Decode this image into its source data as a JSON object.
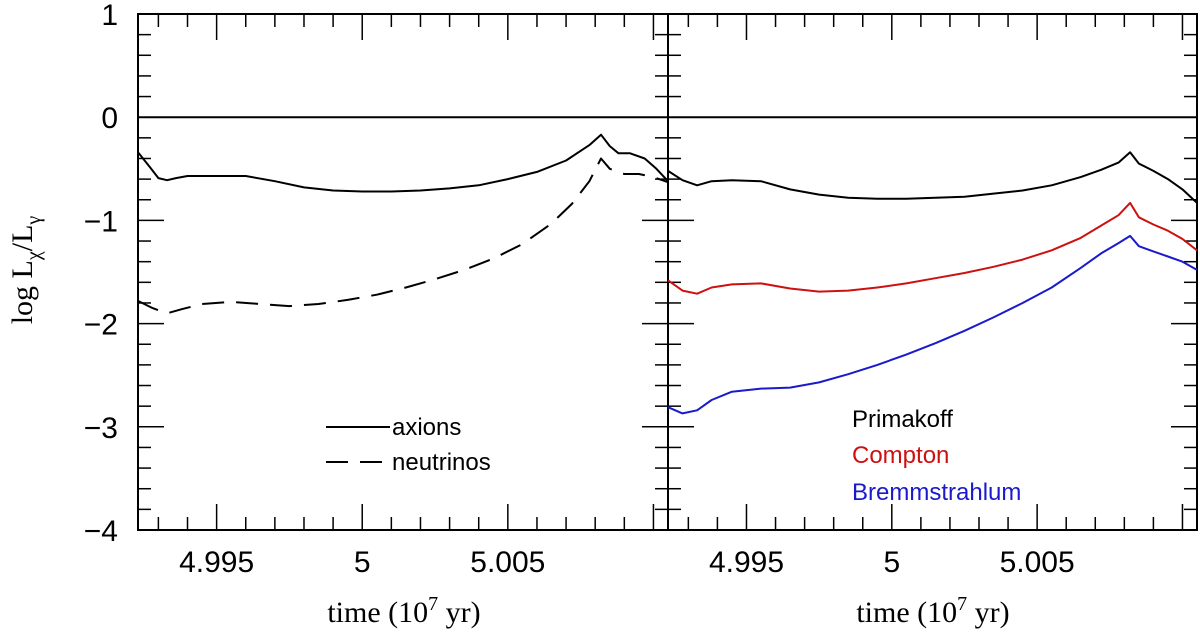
{
  "chart_data": [
    {
      "type": "line",
      "panel": "left",
      "xlabel": "time (10⁷ yr)",
      "ylabel": "log Lₓ/Lᵧ",
      "xlim": [
        4.9923,
        5.0105
      ],
      "ylim": [
        -4,
        1
      ],
      "x_ticks": [
        4.995,
        5,
        5.005
      ],
      "x_tick_labels": [
        "4.995",
        "5",
        "5.005"
      ],
      "y_ticks": [
        1,
        0,
        -1,
        -2,
        -3,
        -4
      ],
      "y_tick_labels": [
        "1",
        "0",
        "−1",
        "−2",
        "−3",
        "−4"
      ],
      "reference_line": 0,
      "legend": [
        "axions",
        "neutrinos"
      ],
      "series": [
        {
          "name": "axions",
          "style": "solid",
          "color": "#000000",
          "x": [
            4.9923,
            4.9927,
            4.993,
            4.9933,
            4.9936,
            4.994,
            4.995,
            4.996,
            4.997,
            4.998,
            4.999,
            5.0,
            5.001,
            5.002,
            5.003,
            5.004,
            5.005,
            5.006,
            5.007,
            5.0078,
            5.0082,
            5.0085,
            5.0088,
            5.0092,
            5.0097,
            5.0101,
            5.0105
          ],
          "y": [
            -0.34,
            -0.48,
            -0.59,
            -0.61,
            -0.59,
            -0.57,
            -0.57,
            -0.57,
            -0.62,
            -0.68,
            -0.71,
            -0.72,
            -0.72,
            -0.71,
            -0.69,
            -0.66,
            -0.6,
            -0.53,
            -0.42,
            -0.27,
            -0.17,
            -0.28,
            -0.35,
            -0.35,
            -0.4,
            -0.5,
            -0.62
          ]
        },
        {
          "name": "neutrinos",
          "style": "dashed",
          "color": "#000000",
          "x": [
            4.9923,
            4.9928,
            4.9933,
            4.9938,
            4.9945,
            4.9955,
            4.9965,
            4.9975,
            4.9985,
            4.9995,
            5.0005,
            5.0015,
            5.0025,
            5.0035,
            5.0045,
            5.0055,
            5.0065,
            5.0072,
            5.0078,
            5.0082,
            5.0085,
            5.009,
            5.0095,
            5.01,
            5.0105
          ],
          "y": [
            -1.78,
            -1.85,
            -1.9,
            -1.86,
            -1.81,
            -1.79,
            -1.81,
            -1.83,
            -1.81,
            -1.77,
            -1.72,
            -1.65,
            -1.57,
            -1.48,
            -1.37,
            -1.23,
            -1.03,
            -0.84,
            -0.62,
            -0.4,
            -0.5,
            -0.55,
            -0.55,
            -0.58,
            -0.63
          ]
        }
      ]
    },
    {
      "type": "line",
      "panel": "right",
      "xlabel": "time (10⁷ yr)",
      "xlim": [
        4.9923,
        5.0105
      ],
      "ylim": [
        -4,
        1
      ],
      "x_ticks": [
        4.995,
        5,
        5.005
      ],
      "x_tick_labels": [
        "4.995",
        "5",
        "5.005"
      ],
      "reference_line": 0,
      "legend": [
        "Primakoff",
        "Compton",
        "Bremmstrahlum"
      ],
      "series": [
        {
          "name": "Primakoff",
          "color": "#000000",
          "x": [
            4.9923,
            4.9928,
            4.9933,
            4.9938,
            4.9945,
            4.9955,
            4.9965,
            4.9975,
            4.9985,
            4.9995,
            5.0005,
            5.0015,
            5.0025,
            5.0035,
            5.0045,
            5.0055,
            5.0065,
            5.0072,
            5.0078,
            5.0082,
            5.0085,
            5.009,
            5.0095,
            5.01,
            5.0105
          ],
          "y": [
            -0.52,
            -0.61,
            -0.66,
            -0.62,
            -0.61,
            -0.62,
            -0.7,
            -0.75,
            -0.78,
            -0.79,
            -0.79,
            -0.78,
            -0.77,
            -0.74,
            -0.71,
            -0.66,
            -0.58,
            -0.51,
            -0.44,
            -0.34,
            -0.45,
            -0.52,
            -0.6,
            -0.7,
            -0.83
          ]
        },
        {
          "name": "Compton",
          "color": "#cc1111",
          "x": [
            4.9923,
            4.9928,
            4.9933,
            4.9938,
            4.9945,
            4.9955,
            4.9965,
            4.9975,
            4.9985,
            4.9995,
            5.0005,
            5.0015,
            5.0025,
            5.0035,
            5.0045,
            5.0055,
            5.0065,
            5.0072,
            5.0078,
            5.0082,
            5.0085,
            5.009,
            5.0095,
            5.01,
            5.0105
          ],
          "y": [
            -1.58,
            -1.68,
            -1.71,
            -1.65,
            -1.62,
            -1.61,
            -1.66,
            -1.69,
            -1.68,
            -1.65,
            -1.61,
            -1.56,
            -1.51,
            -1.45,
            -1.38,
            -1.29,
            -1.17,
            -1.05,
            -0.95,
            -0.83,
            -0.97,
            -1.04,
            -1.1,
            -1.18,
            -1.29
          ]
        },
        {
          "name": "Bremmstrahlum",
          "color": "#1a1acc",
          "x": [
            4.9923,
            4.9928,
            4.9933,
            4.9938,
            4.9945,
            4.9955,
            4.9965,
            4.9975,
            4.9985,
            4.9995,
            5.0005,
            5.0015,
            5.0025,
            5.0035,
            5.0045,
            5.0055,
            5.0065,
            5.0072,
            5.0078,
            5.0082,
            5.0085,
            5.009,
            5.0095,
            5.01,
            5.0105
          ],
          "y": [
            -2.81,
            -2.87,
            -2.84,
            -2.74,
            -2.66,
            -2.63,
            -2.62,
            -2.57,
            -2.49,
            -2.4,
            -2.3,
            -2.19,
            -2.07,
            -1.94,
            -1.8,
            -1.65,
            -1.46,
            -1.32,
            -1.22,
            -1.15,
            -1.25,
            -1.3,
            -1.35,
            -1.4,
            -1.48
          ]
        }
      ]
    }
  ]
}
